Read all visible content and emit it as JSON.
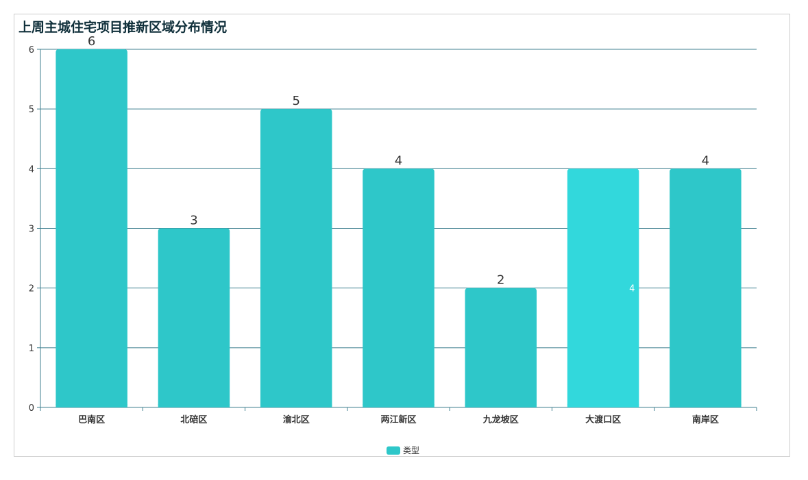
{
  "chart_data": {
    "type": "bar",
    "title": "上周主城住宅项目推新区域分布情况",
    "categories": [
      "巴南区",
      "北碚区",
      "渝北区",
      "两江新区",
      "九龙坡区",
      "大渡口区",
      "南岸区"
    ],
    "series": [
      {
        "name": "类型",
        "values": [
          6,
          3,
          5,
          4,
          2,
          4,
          4
        ]
      }
    ],
    "ylim": [
      0,
      6
    ],
    "yticks": [
      0,
      1,
      2,
      3,
      4,
      5,
      6
    ],
    "grid": true,
    "legend_position": "bottom-center",
    "highlighted_category": "大渡口区",
    "highlighted_value_label": "4",
    "colors": {
      "bar": "#2ec7c9",
      "bar_highlight": "#32d8dc",
      "grid": "#3f7f8f",
      "axis": "#3f7f8f",
      "title": "#0f2f3a"
    }
  }
}
